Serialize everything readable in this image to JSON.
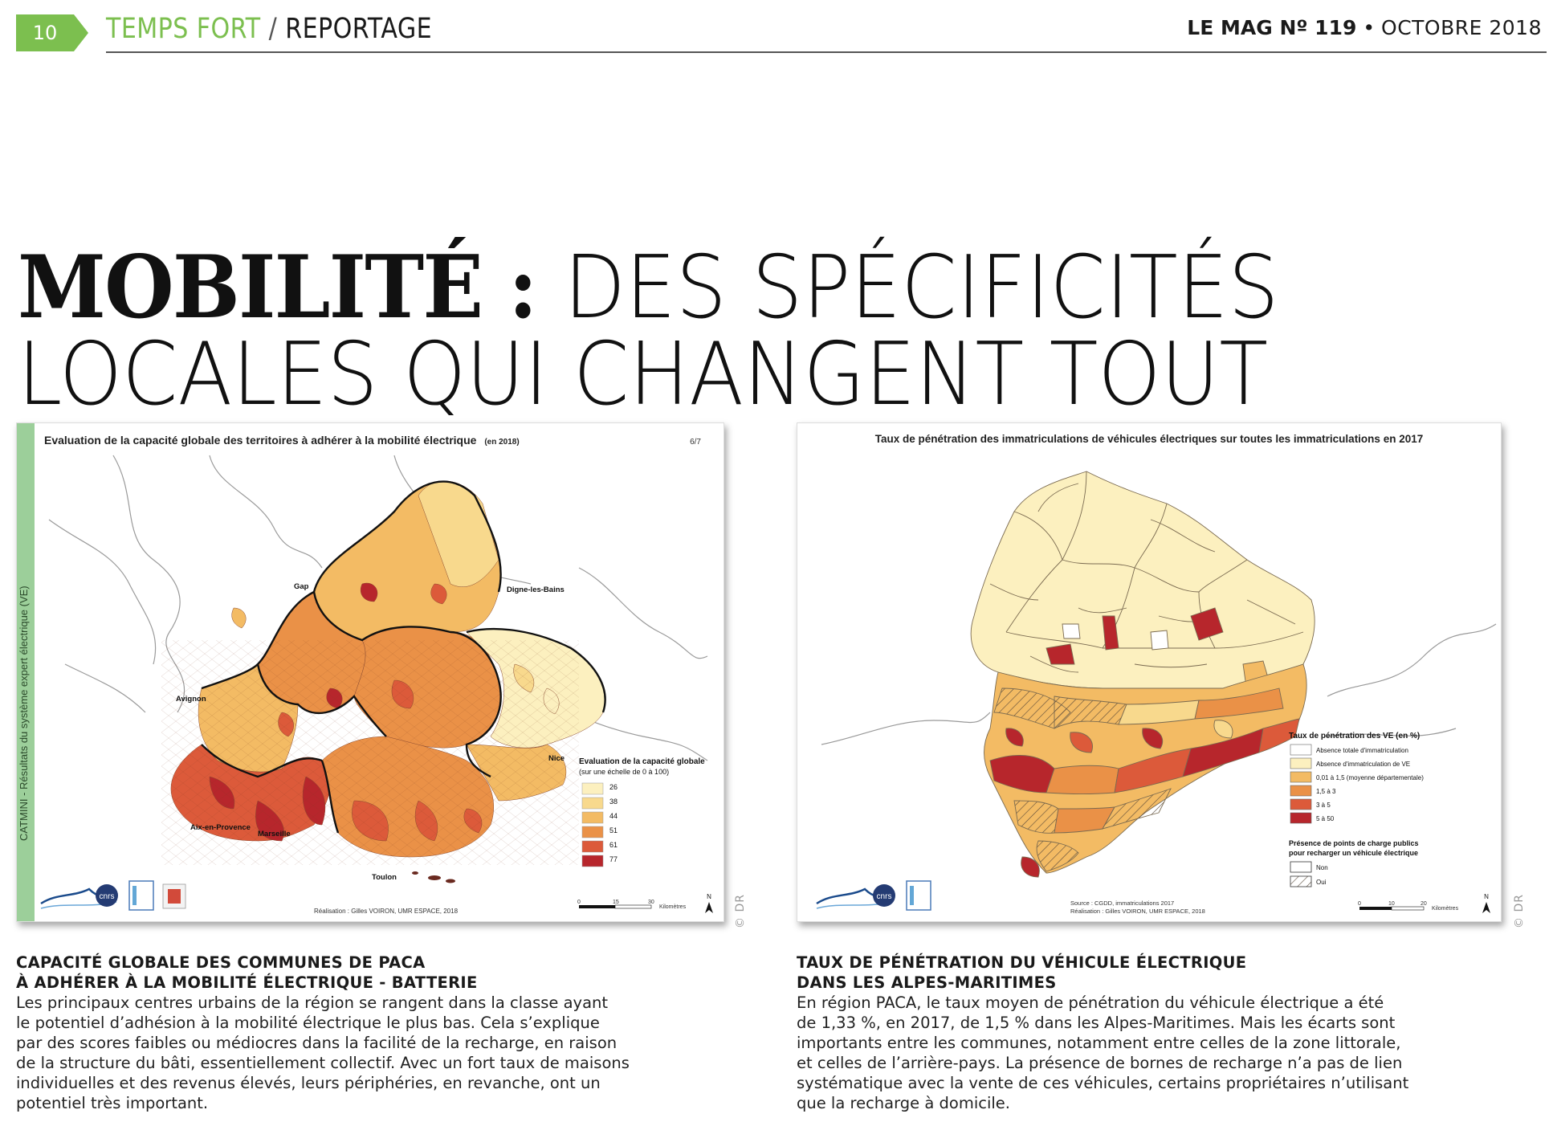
{
  "header": {
    "page_number": "10",
    "section": "TEMPS FORT",
    "separator": "/",
    "subsection": "REPORTAGE",
    "magazine": "LE MAG Nº 119",
    "bullet": "•",
    "date": "OCTOBRE 2018"
  },
  "colors": {
    "accent_green": "#7cbf4f",
    "map_sidebar_green": "#9ccf9a",
    "class_1": "#fcf0bf",
    "class_2": "#f8d98d",
    "class_3": "#f3bb64",
    "class_4": "#ea9147",
    "class_5": "#dc5a3a",
    "class_6": "#b7262c"
  },
  "headline": {
    "bold": "MOBILITÉ :",
    "light_1": "DES SPÉCIFICITÉS",
    "light_2": "LOCALES QUI CHANGENT TOUT"
  },
  "map_left": {
    "title": "Evaluation de la capacité globale des territoires à adhérer à la mobilité électrique",
    "title_suffix": "(en 2018)",
    "page_marker": "6/7",
    "side_label": "CATMINI - Résultats du système expert électrique (VE)",
    "cities": [
      "Gap",
      "Digne-les-Bains",
      "Avignon",
      "Nice",
      "Aix-en-Provence",
      "Marseille",
      "Toulon"
    ],
    "legend_title": "Evaluation de la capacité globale",
    "legend_subtitle": "(sur une échelle de 0 à 100)",
    "legend_values": [
      "26",
      "38",
      "44",
      "51",
      "61",
      "77"
    ],
    "credit": "Réalisation : Gilles VOIRON, UMR ESPACE, 2018",
    "scale_labels": [
      "0",
      "15",
      "30",
      "Kilomètres"
    ],
    "north": "N",
    "logo_cnrs": "cnrs"
  },
  "map_right": {
    "title": "Taux de pénétration des immatriculations de véhicules électriques sur toutes les immatriculations en 2017",
    "legend_title": "Taux de pénétration des VE (en %)",
    "legend_items": [
      "Absence totale d'immatriculation",
      "Absence d'immatriculation de VE",
      "0,01 à 1,5 (moyenne départementale)",
      "1,5 à 3",
      "3 à 5",
      "5 à 50"
    ],
    "legend2_title_1": "Présence de points de charge publics",
    "legend2_title_2": "pour recharger un véhicule électrique",
    "legend2_items": [
      "Non",
      "Oui"
    ],
    "source": "Source : CGDD, immatriculations 2017",
    "credit": "Réalisation : Gilles VOIRON, UMR ESPACE, 2018",
    "scale_labels": [
      "0",
      "10",
      "20",
      "Kilomètres"
    ],
    "north": "N",
    "logo_cnrs": "cnrs"
  },
  "credits": {
    "photo_left": "© DR",
    "photo_right": "© DR"
  },
  "caption_left": {
    "title": "CAPACITÉ GLOBALE DES COMMUNES DE PACA\nÀ ADHÉRER À LA MOBILITÉ ÉLECTRIQUE - BATTERIE",
    "body": "Les principaux centres urbains de la région se rangent dans la classe ayant\nle potentiel d’adhésion à la mobilité électrique le plus bas. Cela s’explique\npar des scores faibles ou médiocres dans la facilité de la recharge, en raison\nde la structure du bâti, essentiellement collectif. Avec un fort taux de maisons\nindividuelles et des revenus élevés, leurs périphéries, en revanche, ont un\npotentiel très important."
  },
  "caption_right": {
    "title": "TAUX DE PÉNÉTRATION DU VÉHICULE ÉLECTRIQUE\nDANS LES ALPES-MARITIMES",
    "body": "En région PACA, le taux moyen de pénétration du véhicule électrique a été\nde 1,33 %, en 2017, de 1,5 % dans les Alpes-Maritimes. Mais les écarts sont\nimportants entre les communes, notamment entre celles de la zone littorale,\net celles de l’arrière-pays. La présence de bornes de recharge n’a pas de lien\nsystématique avec la vente de ces véhicules, certains propriétaires n’utilisant\nque la recharge à domicile."
  }
}
